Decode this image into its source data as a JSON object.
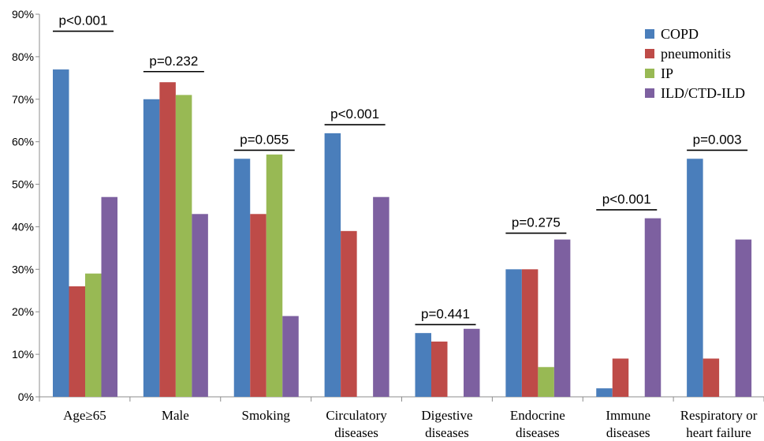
{
  "chart_data": {
    "type": "bar",
    "ylim": [
      0,
      90
    ],
    "y_ticks": [
      "0%",
      "10%",
      "20%",
      "30%",
      "40%",
      "50%",
      "60%",
      "70%",
      "80%",
      "90%"
    ],
    "y_tick_values": [
      0,
      10,
      20,
      30,
      40,
      50,
      60,
      70,
      80,
      90
    ],
    "categories": [
      [
        "Age≥65"
      ],
      [
        "Male"
      ],
      [
        "Smoking"
      ],
      [
        "Circulatory",
        "diseases"
      ],
      [
        "Digestive",
        "diseases"
      ],
      [
        "Endocrine",
        "diseases"
      ],
      [
        "Immune",
        "diseases"
      ],
      [
        "Respiratory or",
        "heart failure"
      ]
    ],
    "series": [
      {
        "name": "COPD",
        "color": "#4a7ebb",
        "values": [
          77,
          70,
          56,
          62,
          15,
          30,
          2,
          56
        ]
      },
      {
        "name": "pneumonitis",
        "color": "#be4b48",
        "values": [
          26,
          74,
          43,
          39,
          13,
          30,
          9,
          9
        ]
      },
      {
        "name": "IP",
        "color": "#98b954",
        "values": [
          29,
          71,
          57,
          0,
          0,
          7,
          0,
          0
        ]
      },
      {
        "name": "ILD/CTD-ILD",
        "color": "#7d60a0",
        "values": [
          47,
          43,
          19,
          47,
          16,
          37,
          42,
          37
        ]
      }
    ],
    "annotations": [
      {
        "text": "p<0.001",
        "category": 0,
        "y": 86
      },
      {
        "text": "p=0.232",
        "category": 1,
        "y": 76.5
      },
      {
        "text": "p=0.055",
        "category": 2,
        "y": 58
      },
      {
        "text": "p<0.001",
        "category": 3,
        "y": 64
      },
      {
        "text": "p=0.441",
        "category": 4,
        "y": 17
      },
      {
        "text": "p=0.275",
        "category": 5,
        "y": 38.5
      },
      {
        "text": "p<0.001",
        "category": 6,
        "y": 44
      },
      {
        "text": "p=0.003",
        "category": 7,
        "y": 58
      }
    ],
    "legend": "top-right",
    "grid": false
  }
}
